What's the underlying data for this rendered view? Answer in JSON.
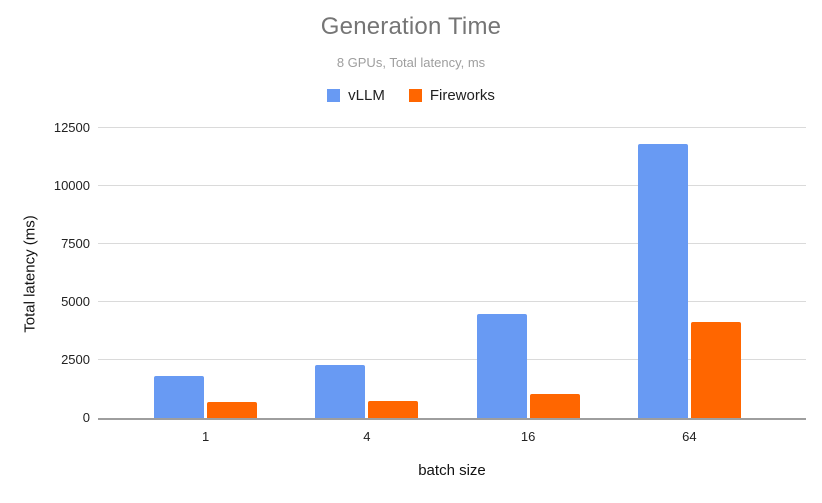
{
  "header": {
    "title": "Generation Time",
    "subtitle": "8 GPUs, Total latency, ms"
  },
  "chart_data": {
    "type": "bar",
    "title": "Generation Time",
    "subtitle": "8 GPUs, Total latency, ms",
    "categories": [
      "1",
      "4",
      "16",
      "64"
    ],
    "series": [
      {
        "name": "vLLM",
        "color": "#689af3",
        "values": [
          1800,
          2300,
          4500,
          11800
        ]
      },
      {
        "name": "Fireworks",
        "color": "#ff6600",
        "values": [
          700,
          750,
          1050,
          4150
        ]
      }
    ],
    "xlabel": "batch size",
    "ylabel": "Total latency (ms)",
    "ylim": [
      0,
      12500
    ],
    "yticks": [
      0,
      2500,
      5000,
      7500,
      10000,
      12500
    ],
    "grid": true,
    "legend_position": "top"
  },
  "colors": {
    "title_gray": "#757575",
    "subtitle_gray": "#9e9e9e",
    "gridline": "#dadada",
    "axis_line": "#9e9e9e",
    "background": "#ffffff"
  }
}
